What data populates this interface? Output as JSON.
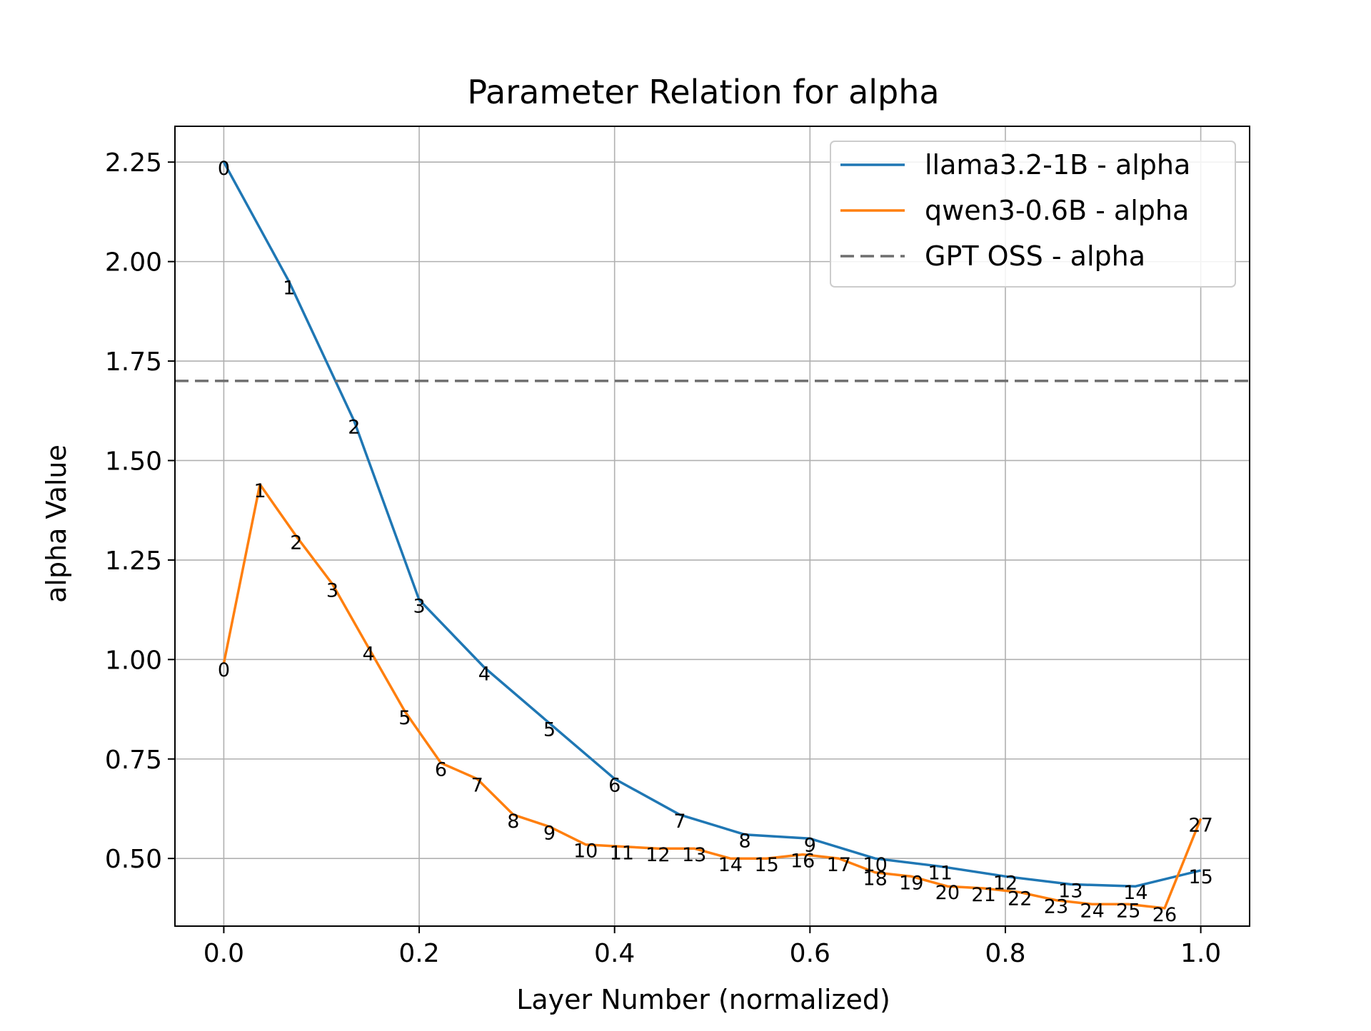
{
  "chart_data": {
    "type": "line",
    "title": "Parameter Relation for alpha",
    "xlabel": "Layer Number (normalized)",
    "ylabel": "alpha Value",
    "xlim": [
      -0.05,
      1.05
    ],
    "ylim": [
      0.33,
      2.34
    ],
    "xticks": [
      "0.0",
      "0.2",
      "0.4",
      "0.6",
      "0.8",
      "1.0"
    ],
    "yticks": [
      "0.50",
      "0.75",
      "1.00",
      "1.25",
      "1.50",
      "1.75",
      "2.00",
      "2.25"
    ],
    "grid": true,
    "legend_position": "top-right",
    "series": [
      {
        "name": "llama3.2-1B - alpha",
        "color": "#1f77b4",
        "style": "solid",
        "x": [
          0.0,
          0.0667,
          0.1333,
          0.2,
          0.2667,
          0.3333,
          0.4,
          0.4667,
          0.5333,
          0.6,
          0.6667,
          0.7333,
          0.8,
          0.8667,
          0.9333,
          1.0
        ],
        "y": [
          2.25,
          1.95,
          1.6,
          1.15,
          0.98,
          0.84,
          0.7,
          0.61,
          0.56,
          0.55,
          0.5,
          0.48,
          0.455,
          0.435,
          0.43,
          0.47
        ],
        "point_labels": [
          "0",
          "1",
          "2",
          "3",
          "4",
          "5",
          "6",
          "7",
          "8",
          "9",
          "10",
          "11",
          "12",
          "13",
          "14",
          "15"
        ]
      },
      {
        "name": "qwen3-0.6B - alpha",
        "color": "#ff7f0e",
        "style": "solid",
        "x": [
          0.0,
          0.037,
          0.0741,
          0.1111,
          0.1481,
          0.1852,
          0.2222,
          0.2593,
          0.2963,
          0.3333,
          0.3704,
          0.4074,
          0.4444,
          0.4815,
          0.5185,
          0.5556,
          0.5926,
          0.6296,
          0.6667,
          0.7037,
          0.7407,
          0.7778,
          0.8148,
          0.8519,
          0.8889,
          0.9259,
          0.963,
          1.0
        ],
        "y": [
          0.99,
          1.44,
          1.31,
          1.19,
          1.03,
          0.87,
          0.74,
          0.7,
          0.61,
          0.58,
          0.535,
          0.53,
          0.525,
          0.525,
          0.5,
          0.5,
          0.51,
          0.5,
          0.465,
          0.455,
          0.43,
          0.425,
          0.415,
          0.395,
          0.385,
          0.385,
          0.375,
          0.6
        ],
        "point_labels": [
          "0",
          "1",
          "2",
          "3",
          "4",
          "5",
          "6",
          "7",
          "8",
          "9",
          "10",
          "11",
          "12",
          "13",
          "14",
          "15",
          "16",
          "17",
          "18",
          "19",
          "20",
          "21",
          "22",
          "23",
          "24",
          "25",
          "26",
          "27"
        ]
      },
      {
        "name": "GPT OSS - alpha",
        "color": "#6e6e6e",
        "style": "dashed",
        "constant_y": 1.7
      }
    ]
  }
}
